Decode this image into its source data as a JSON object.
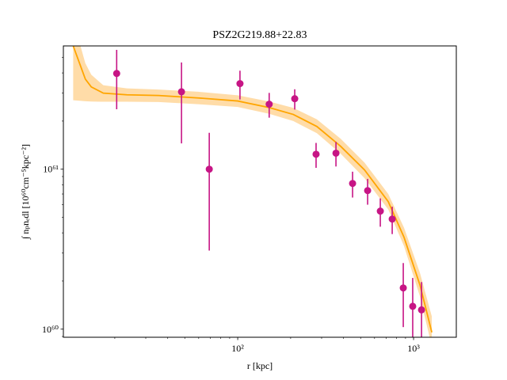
{
  "chart_data": {
    "type": "scatter",
    "title": "PSZ2G219.88+22.83",
    "x_label": "r [kpc]",
    "y_label": "∫ nₚnₑdl [10⁶⁰cm⁻⁵kpc⁻²]",
    "log_x": true,
    "log_y": true,
    "xlim": [
      10.2,
      1750
    ],
    "ylim": [
      8.9e+59,
      5.9e+61
    ],
    "xticks": [
      {
        "value": 100,
        "label": "10²"
      },
      {
        "value": 1000,
        "label": "10³"
      }
    ],
    "yticks": [
      {
        "value": 1e+60,
        "label": "10⁶⁰"
      },
      {
        "value": 1e+61,
        "label": "10⁶¹"
      }
    ],
    "points": {
      "color": "#c71585",
      "x": [
        20.5,
        47.9,
        68.9,
        103,
        151,
        211,
        279,
        362,
        450,
        548,
        647,
        756,
        874,
        989,
        1110
      ],
      "values": [
        3.97e+61,
        3.05e+61,
        1e+61,
        3.43e+61,
        2.55e+61,
        2.76e+61,
        1.24e+61,
        1.26e+61,
        8.15e+60,
        7.35e+60,
        5.47e+60,
        4.88e+60,
        1.81e+60,
        1.39e+60,
        1.32e+60
      ],
      "errors": [
        1.6e+61,
        1.6e+61,
        6.9e+60,
        7e+60,
        4.5e+60,
        4e+60,
        2.2e+60,
        2.2e+60,
        1.5e+60,
        1.35e+60,
        1.1e+60,
        9.5e+59,
        7.8e+59,
        7e+59,
        6.5e+59
      ]
    },
    "model": {
      "color": "#ffa500",
      "band_color": "#ffd699",
      "x": [
        11.6,
        12.6,
        13.6,
        14.7,
        17.2,
        23.4,
        35.5,
        59.6,
        100,
        151,
        207,
        282,
        385,
        526,
        718,
        883,
        1087,
        1270
      ],
      "values": [
        5.9e+61,
        4.6e+61,
        3.66e+61,
        3.27e+61,
        2.99e+61,
        2.92e+61,
        2.89e+61,
        2.79e+61,
        2.67e+61,
        2.43e+61,
        2.2e+61,
        1.85e+61,
        1.39e+61,
        9.9e+60,
        6.27e+60,
        3.75e+60,
        1.89e+60,
        9.55e+59
      ],
      "upper": [
        8e+61,
        6.2e+61,
        4.6e+61,
        3.9e+61,
        3.35e+61,
        3.2e+61,
        3.15e+61,
        3.05e+61,
        2.9e+61,
        2.65e+61,
        2.42e+61,
        2.05e+61,
        1.55e+61,
        1.1e+61,
        7e+60,
        4.3e+60,
        2.25e+60,
        1.2e+60
      ],
      "lower": [
        2.7e+61,
        2.68e+61,
        2.66e+61,
        2.65e+61,
        2.64e+61,
        2.64e+61,
        2.63e+61,
        2.55e+61,
        2.45e+61,
        2.22e+61,
        2e+61,
        1.68e+61,
        1.25e+61,
        8.8e+60,
        5.6e+60,
        3.3e+60,
        1.6e+60,
        7.8e+59
      ]
    }
  }
}
